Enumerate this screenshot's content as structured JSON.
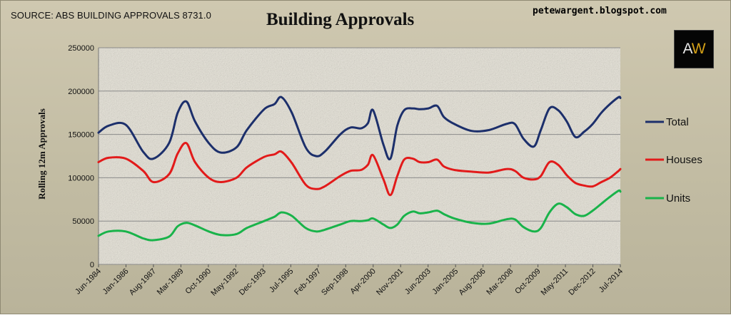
{
  "header": {
    "source": "SOURCE: ABS BUILDING APPROVALS 8731.0",
    "title": "Building Approvals",
    "site": "petewargent.blogspot.com",
    "logo": {
      "letter_a": "A",
      "letter_w": "W"
    }
  },
  "chart_data": {
    "type": "line",
    "title": "Building Approvals",
    "xlabel": "",
    "ylabel": "Rolling 12m  Approvals",
    "ylim": [
      0,
      250000
    ],
    "y_ticks": [
      "0",
      "50000",
      "100000",
      "150000",
      "200000",
      "250000"
    ],
    "x_tick_labels": [
      "Jun-1984",
      "Jan-1986",
      "Aug-1987",
      "Mar-1989",
      "Oct-1990",
      "May-1992",
      "Dec-1993",
      "Jul-1995",
      "Feb-1997",
      "Sep-1998",
      "Apr-2000",
      "Nov-2001",
      "Jun-2003",
      "Jan-2005",
      "Aug-2006",
      "Mar-2008",
      "Oct-2009",
      "May-2011",
      "Dec-2012",
      "Jul-2014"
    ],
    "grid": true,
    "legend_position": "right",
    "x": [
      1984.42,
      1985.0,
      1986.0,
      1987.0,
      1987.6,
      1988.5,
      1989.0,
      1989.5,
      1990.0,
      1990.8,
      1991.5,
      1992.4,
      1993.0,
      1994.0,
      1994.6,
      1995.0,
      1995.6,
      1996.4,
      1997.0,
      1997.5,
      1998.4,
      1999.0,
      1999.6,
      2000.0,
      2000.3,
      2000.9,
      2001.3,
      2001.7,
      2002.1,
      2002.6,
      2003.0,
      2003.5,
      2004.0,
      2004.4,
      2005.0,
      2006.0,
      2007.0,
      2008.0,
      2008.5,
      2009.0,
      2009.6,
      2010.0,
      2010.5,
      2011.0,
      2011.5,
      2012.0,
      2012.5,
      2013.0,
      2013.5,
      2014.0,
      2014.5,
      2014.6
    ],
    "series": [
      {
        "name": "Total",
        "color": "#1c2f6b",
        "values": [
          152000,
          160000,
          161000,
          130000,
          122000,
          140000,
          175000,
          188000,
          165000,
          140000,
          129000,
          135000,
          155000,
          179000,
          185000,
          193000,
          175000,
          135000,
          125000,
          130000,
          150000,
          158000,
          157000,
          163000,
          178000,
          138000,
          122000,
          160000,
          178000,
          180000,
          179000,
          180000,
          183000,
          170000,
          162000,
          154000,
          155000,
          162000,
          162000,
          145000,
          136000,
          155000,
          180000,
          178000,
          165000,
          147000,
          153000,
          162000,
          175000,
          185000,
          193000,
          192000
        ]
      },
      {
        "name": "Houses",
        "color": "#e21a1a",
        "values": [
          118000,
          123000,
          122000,
          108000,
          95000,
          104000,
          128000,
          140000,
          118000,
          100000,
          95000,
          100000,
          112000,
          124000,
          127000,
          130000,
          117000,
          92000,
          87000,
          90000,
          102000,
          108000,
          109000,
          115000,
          126000,
          98000,
          80000,
          102000,
          121000,
          122000,
          118000,
          118000,
          121000,
          113000,
          109000,
          107000,
          106000,
          110000,
          108000,
          100000,
          98000,
          102000,
          118000,
          115000,
          103000,
          94000,
          91000,
          90000,
          95000,
          100000,
          108000,
          110000
        ]
      },
      {
        "name": "Units",
        "color": "#19b34a",
        "values": [
          33000,
          38000,
          38000,
          30000,
          28000,
          32000,
          44000,
          48000,
          45000,
          38000,
          34000,
          35000,
          42000,
          50000,
          55000,
          60000,
          56000,
          42000,
          38000,
          40000,
          46000,
          50000,
          50000,
          51000,
          53000,
          46000,
          42000,
          46000,
          56000,
          61000,
          59000,
          60000,
          62000,
          58000,
          53000,
          48000,
          47000,
          52000,
          52000,
          43000,
          38000,
          42000,
          60000,
          70000,
          66000,
          58000,
          56000,
          62000,
          70000,
          78000,
          85000,
          84000
        ]
      }
    ]
  }
}
